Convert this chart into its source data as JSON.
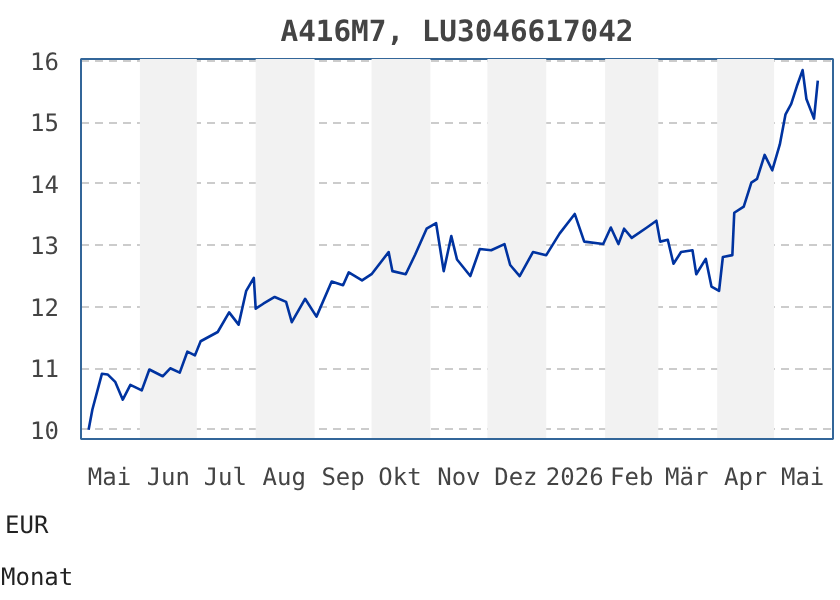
{
  "chart_data": {
    "type": "line",
    "title": "A416M7, LU3046617042",
    "xlabel": "Monat",
    "ylabel": "EUR",
    "x": [
      "2025-05-05",
      "2025-05-07",
      "2025-05-12",
      "2025-05-15",
      "2025-05-19",
      "2025-05-23",
      "2025-05-27",
      "2025-06-02",
      "2025-06-06",
      "2025-06-13",
      "2025-06-17",
      "2025-06-22",
      "2025-06-26",
      "2025-06-30",
      "2025-07-03",
      "2025-07-12",
      "2025-07-18",
      "2025-07-23",
      "2025-07-27",
      "2025-07-31",
      "2025-08-01",
      "2025-08-05",
      "2025-08-11",
      "2025-08-17",
      "2025-08-20",
      "2025-08-27",
      "2025-09-02",
      "2025-09-10",
      "2025-09-16",
      "2025-09-19",
      "2025-09-26",
      "2025-10-01",
      "2025-10-10",
      "2025-10-12",
      "2025-10-19",
      "2025-10-24",
      "2025-10-30",
      "2025-11-04",
      "2025-11-08",
      "2025-11-12",
      "2025-11-15",
      "2025-11-22",
      "2025-11-27",
      "2025-12-03",
      "2025-12-10",
      "2025-12-13",
      "2025-12-18",
      "2025-12-25",
      "2026-01-01",
      "2026-01-08",
      "2026-01-16",
      "2026-01-21",
      "2026-01-31",
      "2026-02-04",
      "2026-02-08",
      "2026-02-11",
      "2026-02-15",
      "2026-02-23",
      "2026-02-28",
      "2026-03-02",
      "2026-03-06",
      "2026-03-09",
      "2026-03-13",
      "2026-03-19",
      "2026-03-21",
      "2026-03-26",
      "2026-03-29",
      "2026-04-02",
      "2026-04-04",
      "2026-04-09",
      "2026-04-10",
      "2026-04-15",
      "2026-04-19",
      "2026-04-22",
      "2026-04-26",
      "2026-04-30",
      "2026-05-04",
      "2026-05-07",
      "2026-05-10",
      "2026-05-13",
      "2026-05-16",
      "2026-05-18",
      "2026-05-22",
      "2026-05-24"
    ],
    "series": [
      {
        "color": "#0033a0",
        "values": [
          10.0,
          10.33,
          10.91,
          10.9,
          10.78,
          10.49,
          10.73,
          10.64,
          10.98,
          10.87,
          11.0,
          10.93,
          11.27,
          11.21,
          11.44,
          11.59,
          11.91,
          11.71,
          12.26,
          12.47,
          11.97,
          12.05,
          12.16,
          12.08,
          11.75,
          12.13,
          11.84,
          12.41,
          12.35,
          12.56,
          12.43,
          12.53,
          12.89,
          12.58,
          12.53,
          12.85,
          13.27,
          13.36,
          12.58,
          13.15,
          12.77,
          12.5,
          12.94,
          12.92,
          13.02,
          12.68,
          12.5,
          12.89,
          12.84,
          13.19,
          13.51,
          13.06,
          13.02,
          13.29,
          13.02,
          13.27,
          13.12,
          13.29,
          13.4,
          13.06,
          13.09,
          12.7,
          12.89,
          12.92,
          12.53,
          12.78,
          12.33,
          12.26,
          12.81,
          12.84,
          13.53,
          13.63,
          14.02,
          14.08,
          14.47,
          14.22,
          14.64,
          15.13,
          15.3,
          15.59,
          15.85,
          15.38,
          15.06,
          15.68
        ]
      }
    ],
    "xlim": [
      "2025-05-01",
      "2026-06-01"
    ],
    "xticks": [
      {
        "value": "2025-05-16",
        "label": "Mai"
      },
      {
        "value": "2025-06-16",
        "label": "Jun"
      },
      {
        "value": "2025-07-16",
        "label": "Jul"
      },
      {
        "value": "2025-08-16",
        "label": "Aug"
      },
      {
        "value": "2025-09-16",
        "label": "Sep"
      },
      {
        "value": "2025-10-16",
        "label": "Okt"
      },
      {
        "value": "2025-11-16",
        "label": "Nov"
      },
      {
        "value": "2025-12-16",
        "label": "Dez"
      },
      {
        "value": "2026-01-16",
        "label": "2026"
      },
      {
        "value": "2026-02-15",
        "label": "Feb"
      },
      {
        "value": "2026-03-16",
        "label": "Mär"
      },
      {
        "value": "2026-04-16",
        "label": "Apr"
      },
      {
        "value": "2026-05-16",
        "label": "Mai"
      }
    ],
    "ylim": [
      9.85,
      16.03
    ],
    "yticks": [
      10,
      11,
      12,
      13,
      14,
      15,
      16
    ],
    "grid": "y",
    "line_style": "solid",
    "bands": [
      {
        "axis": "x",
        "from": "2025-06-01",
        "to": "2025-07-01",
        "color": "#f2f2f2"
      },
      {
        "axis": "x",
        "from": "2025-08-01",
        "to": "2025-09-01",
        "color": "#f2f2f2"
      },
      {
        "axis": "x",
        "from": "2025-10-01",
        "to": "2025-11-01",
        "color": "#f2f2f2"
      },
      {
        "axis": "x",
        "from": "2025-12-01",
        "to": "2026-01-01",
        "color": "#f2f2f2"
      },
      {
        "axis": "x",
        "from": "2026-02-01",
        "to": "2026-03-01",
        "color": "#f2f2f2"
      },
      {
        "axis": "x",
        "from": "2026-04-01",
        "to": "2026-05-01",
        "color": "#f2f2f2"
      }
    ]
  }
}
